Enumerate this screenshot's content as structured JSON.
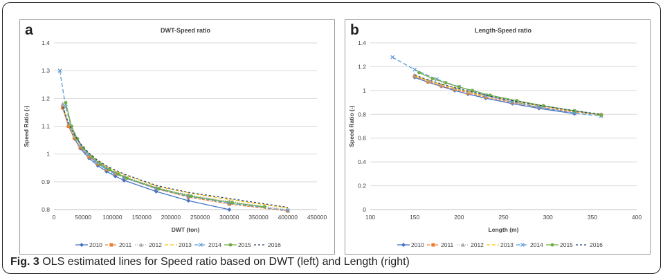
{
  "figure": {
    "caption_label": "Fig. 3",
    "caption_text": " OLS estimated lines for Speed ratio based on DWT (left) and Length (right)"
  },
  "chart_data": [
    {
      "panel": "a",
      "type": "line",
      "title": "DWT-Speed ratio",
      "xlabel": "DWT (ton)",
      "ylabel": "Speed Ratio (-)",
      "xlim": [
        0,
        450000
      ],
      "ylim": [
        0.8,
        1.4
      ],
      "xticks": [
        "0",
        "50000",
        "100000",
        "150000",
        "200000",
        "250000",
        "300000",
        "350000",
        "400000",
        "450000"
      ],
      "yticks": [
        "0.8",
        "0.9",
        "1",
        "1.1",
        "1.2",
        "1.3",
        "1.4"
      ],
      "grid": "horizontal",
      "legend": "bottom",
      "series": [
        {
          "name": "2010",
          "color": "#4472c4",
          "marker": "diamond",
          "dash": "",
          "x": [
            15000,
            25000,
            35000,
            45000,
            60000,
            75000,
            90000,
            105000,
            120000,
            175000,
            230000,
            300000
          ],
          "y": [
            1.165,
            1.1,
            1.055,
            1.02,
            0.985,
            0.958,
            0.937,
            0.92,
            0.905,
            0.865,
            0.832,
            0.8
          ]
        },
        {
          "name": "2011",
          "color": "#ed7d31",
          "marker": "square",
          "dash": "4,2",
          "x": [
            15000,
            25000,
            35000,
            45000,
            60000,
            75000,
            90000,
            105000,
            120000,
            175000,
            230000,
            300000,
            400000
          ],
          "y": [
            1.167,
            1.1,
            1.057,
            1.025,
            0.99,
            0.965,
            0.945,
            0.93,
            0.915,
            0.875,
            0.845,
            0.82,
            0.795
          ]
        },
        {
          "name": "2012",
          "color": "#a5a5a5",
          "marker": "triangle",
          "dash": "1,2",
          "x": [
            15000,
            25000,
            35000,
            45000,
            60000,
            75000,
            90000,
            105000,
            120000,
            175000,
            230000,
            300000,
            400000
          ],
          "y": [
            1.18,
            1.11,
            1.065,
            1.032,
            0.997,
            0.97,
            0.95,
            0.934,
            0.92,
            0.88,
            0.853,
            0.83,
            0.8
          ]
        },
        {
          "name": "2013",
          "color": "#ffc000",
          "marker": "none",
          "dash": "5,3",
          "x": [
            15000,
            25000,
            35000,
            45000,
            60000,
            75000,
            90000,
            105000,
            120000,
            175000,
            230000,
            300000,
            400000
          ],
          "y": [
            1.17,
            1.107,
            1.065,
            1.035,
            1.0,
            0.975,
            0.955,
            0.94,
            0.926,
            0.885,
            0.86,
            0.836,
            0.806
          ]
        },
        {
          "name": "2014",
          "color": "#5b9bd5",
          "marker": "x",
          "dash": "6,3",
          "x": [
            10000,
            20000,
            30000,
            40000,
            55000,
            70000,
            85000,
            100000,
            120000,
            175000,
            230000,
            300000,
            400000
          ],
          "y": [
            1.3,
            1.17,
            1.095,
            1.05,
            1.005,
            0.975,
            0.952,
            0.934,
            0.915,
            0.875,
            0.848,
            0.823,
            0.797
          ]
        },
        {
          "name": "2015",
          "color": "#70ad47",
          "marker": "circle",
          "dash": "",
          "x": [
            20000,
            30000,
            40000,
            50000,
            65000,
            80000,
            95000,
            110000,
            125000,
            180000,
            235000,
            305000,
            360000
          ],
          "y": [
            1.185,
            1.1,
            1.055,
            1.022,
            0.99,
            0.963,
            0.944,
            0.928,
            0.913,
            0.875,
            0.848,
            0.825,
            0.81
          ]
        },
        {
          "name": "2016",
          "color": "#264478",
          "marker": "none",
          "dash": "3,3",
          "x": [
            15000,
            25000,
            35000,
            45000,
            60000,
            75000,
            90000,
            105000,
            120000,
            175000,
            230000,
            300000,
            400000
          ],
          "y": [
            1.17,
            1.11,
            1.068,
            1.038,
            1.003,
            0.977,
            0.957,
            0.942,
            0.928,
            0.887,
            0.862,
            0.84,
            0.808
          ]
        }
      ]
    },
    {
      "panel": "b",
      "type": "line",
      "title": "Length-Speed ratio",
      "xlabel": "Length (m)",
      "ylabel": "Speed Ratio (-)",
      "xlim": [
        100,
        400
      ],
      "ylim": [
        0,
        1.4
      ],
      "xticks": [
        "100",
        "150",
        "200",
        "250",
        "300",
        "350",
        "400"
      ],
      "yticks": [
        "0",
        "0.2",
        "0.4",
        "0.6",
        "0.8",
        "1",
        "1.2",
        "1.4"
      ],
      "grid": "horizontal",
      "legend": "bottom",
      "series": [
        {
          "name": "2010",
          "color": "#4472c4",
          "marker": "diamond",
          "dash": "",
          "x": [
            150,
            165,
            180,
            195,
            210,
            230,
            260,
            290,
            330
          ],
          "y": [
            1.11,
            1.07,
            1.035,
            1.0,
            0.97,
            0.935,
            0.89,
            0.85,
            0.805
          ]
        },
        {
          "name": "2011",
          "color": "#ed7d31",
          "marker": "square",
          "dash": "4,2",
          "x": [
            150,
            165,
            180,
            195,
            210,
            230,
            260,
            290,
            330,
            360
          ],
          "y": [
            1.12,
            1.075,
            1.04,
            1.01,
            0.98,
            0.945,
            0.9,
            0.86,
            0.82,
            0.795
          ]
        },
        {
          "name": "2012",
          "color": "#a5a5a5",
          "marker": "triangle",
          "dash": "1,2",
          "x": [
            150,
            165,
            180,
            195,
            210,
            230,
            260,
            290,
            330,
            360
          ],
          "y": [
            1.13,
            1.085,
            1.05,
            1.02,
            0.99,
            0.955,
            0.91,
            0.87,
            0.825,
            0.8
          ]
        },
        {
          "name": "2013",
          "color": "#ffc000",
          "marker": "none",
          "dash": "5,3",
          "x": [
            150,
            165,
            180,
            195,
            210,
            230,
            260,
            290,
            330,
            360
          ],
          "y": [
            1.125,
            1.085,
            1.05,
            1.02,
            0.99,
            0.957,
            0.912,
            0.872,
            0.828,
            0.8
          ]
        },
        {
          "name": "2014",
          "color": "#5b9bd5",
          "marker": "x",
          "dash": "6,3",
          "x": [
            125,
            150,
            175,
            200,
            230,
            260,
            290,
            330,
            360
          ],
          "y": [
            1.28,
            1.175,
            1.095,
            1.03,
            0.96,
            0.905,
            0.86,
            0.81,
            0.785
          ]
        },
        {
          "name": "2015",
          "color": "#70ad47",
          "marker": "circle",
          "dash": "",
          "x": [
            155,
            170,
            185,
            200,
            215,
            235,
            265,
            295,
            330,
            360
          ],
          "y": [
            1.15,
            1.1,
            1.065,
            1.03,
            1.0,
            0.96,
            0.915,
            0.872,
            0.83,
            0.795
          ]
        },
        {
          "name": "2016",
          "color": "#264478",
          "marker": "none",
          "dash": "3,3",
          "x": [
            150,
            165,
            180,
            195,
            210,
            230,
            260,
            290,
            330,
            360
          ],
          "y": [
            1.13,
            1.09,
            1.055,
            1.025,
            0.995,
            0.96,
            0.915,
            0.875,
            0.83,
            0.8
          ]
        }
      ]
    }
  ]
}
